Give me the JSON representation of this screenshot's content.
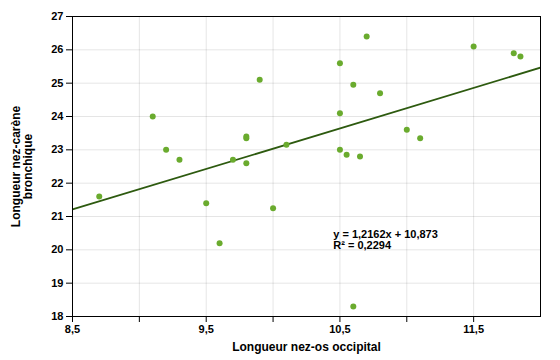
{
  "chart_data": {
    "type": "scatter",
    "x": [
      8.7,
      9.1,
      9.2,
      9.3,
      9.5,
      9.6,
      9.7,
      9.8,
      9.8,
      9.8,
      9.9,
      10.0,
      10.1,
      10.5,
      10.5,
      10.5,
      10.55,
      10.6,
      10.6,
      10.65,
      10.7,
      10.8,
      11.0,
      11.1,
      11.5,
      11.8,
      11.85
    ],
    "values": [
      21.6,
      24.0,
      23.0,
      22.7,
      21.4,
      20.2,
      22.7,
      22.6,
      23.35,
      23.4,
      25.1,
      21.25,
      23.15,
      25.6,
      24.1,
      23.0,
      22.85,
      18.3,
      24.95,
      22.8,
      26.4,
      24.7,
      23.6,
      23.35,
      26.1,
      25.9,
      25.8
    ],
    "color": "#6aab2e",
    "trend": {
      "type": "line",
      "x": [
        8.5,
        12.0
      ],
      "values": [
        21.2107,
        25.4674
      ],
      "color": "#2d5a0f"
    },
    "annotation": {
      "lines": [
        "y = 1,2162x + 10,873",
        "R² = 0,2294"
      ],
      "x": 10.45,
      "y": 20.3
    },
    "xlabel": "Longueur nez-os occipital",
    "ylabel": "Longueur nez-carène\nbronchique",
    "xlim": [
      8.5,
      12.0
    ],
    "ylim": [
      18,
      27
    ],
    "xticks": [
      {
        "value": 8.5,
        "label": "8,5"
      },
      {
        "value": 9.0,
        "label": null
      },
      {
        "value": 9.5,
        "label": "9,5"
      },
      {
        "value": 10.0,
        "label": null
      },
      {
        "value": 10.5,
        "label": "10,5"
      },
      {
        "value": 11.0,
        "label": null
      },
      {
        "value": 11.5,
        "label": "11,5"
      }
    ],
    "yticks": [
      18,
      19,
      20,
      21,
      22,
      23,
      24,
      25,
      26,
      27
    ],
    "grid": true
  }
}
